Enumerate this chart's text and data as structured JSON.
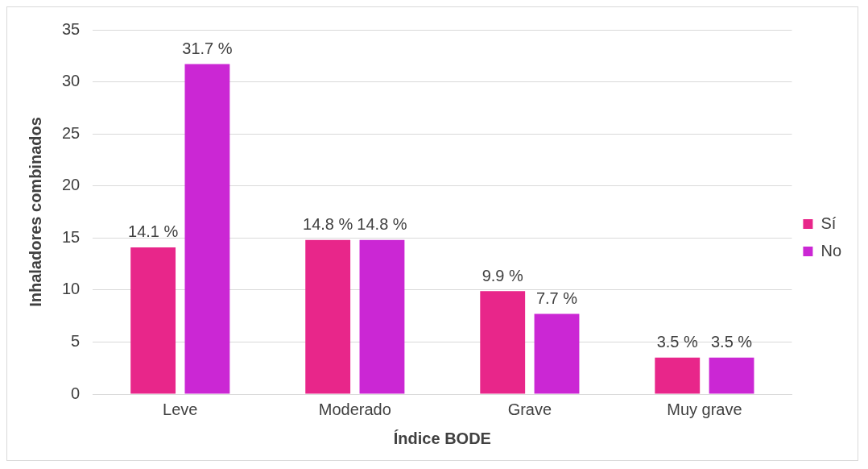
{
  "chart_data": {
    "type": "bar",
    "xlabel": "Índice BODE",
    "ylabel": "Inhaladores combinados",
    "categories": [
      "Leve",
      "Moderado",
      "Grave",
      "Muy grave"
    ],
    "series": [
      {
        "name": "Sí",
        "color": "#e8268a",
        "values": [
          14.1,
          14.8,
          9.9,
          3.5
        ],
        "value_labels": [
          "14.1 %",
          "14.8 %",
          "9.9 %",
          "3.5 %"
        ]
      },
      {
        "name": "No",
        "color": "#cb27d4",
        "values": [
          31.7,
          14.8,
          7.7,
          3.5
        ],
        "value_labels": [
          "31.7 %",
          "14.8 %",
          "7.7 %",
          "3.5 %"
        ]
      }
    ],
    "ylim": [
      0,
      35
    ],
    "yticks": [
      0,
      5,
      10,
      15,
      20,
      25,
      30,
      35
    ],
    "grid": "y",
    "legend": "right"
  }
}
